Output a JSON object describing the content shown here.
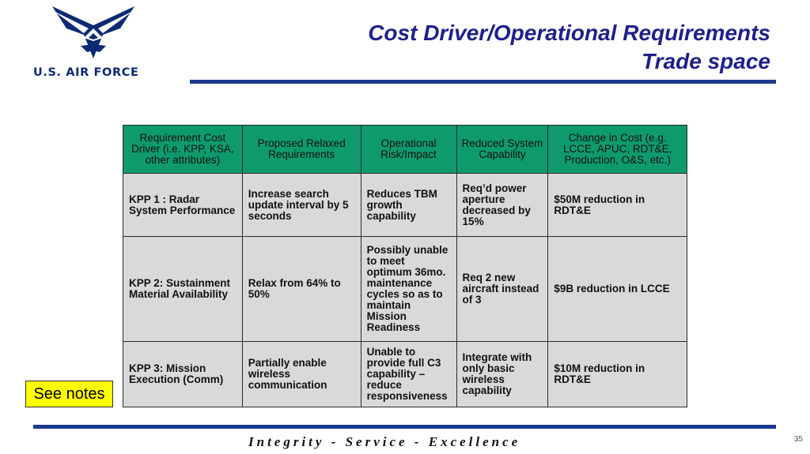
{
  "logo": {
    "text": "U.S. AIR FORCE"
  },
  "title": {
    "line1": "Cost Driver/Operational Requirements",
    "line2": "Trade space"
  },
  "table": {
    "headers": [
      "Requirement Cost Driver (i.e. KPP, KSA, other attributes)",
      "Proposed Relaxed Requirements",
      "Operational Risk/Impact",
      "Reduced System Capability",
      "Change in Cost (e.g. LCCE, APUC, RDT&E, Production, O&S, etc.)"
    ],
    "rows": [
      [
        "KPP 1 : Radar System Performance",
        "Increase search update interval by 5 seconds",
        "Reduces TBM growth capability",
        "Req’d power aperture decreased by 15%",
        "$50M reduction in RDT&E"
      ],
      [
        "KPP 2: Sustainment Material Availability",
        "Relax from 64% to 50%",
        "Possibly unable to meet optimum 36mo. maintenance cycles so as to maintain Mission Readiness",
        "Req 2 new aircraft instead of 3",
        "$9B reduction in LCCE"
      ],
      [
        "KPP 3:  Mission Execution (Comm)",
        "Partially enable wireless communication",
        "Unable to provide full C3 capability – reduce responsiveness",
        "Integrate with only basic wireless capability",
        "$10M reduction in RDT&E"
      ]
    ]
  },
  "notes_button": "See notes",
  "footer": "Integrity - Service - Excellence",
  "page_number": "35",
  "colors": {
    "header_fill": "#0f9a6e",
    "cell_fill": "#d9d9d9",
    "rule": "#1b3a8f",
    "title": "#1f1f8a",
    "notes_fill": "#ffff00"
  }
}
